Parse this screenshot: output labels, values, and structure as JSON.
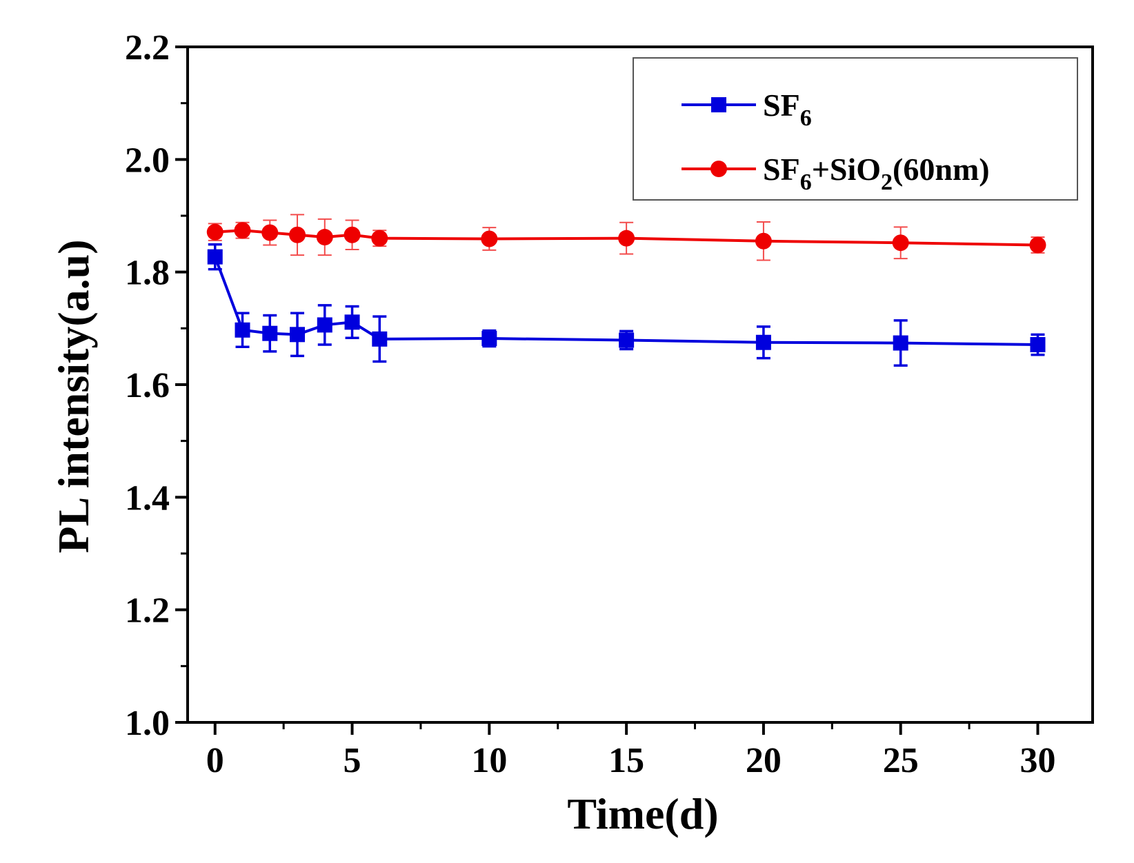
{
  "chart_data": {
    "type": "line",
    "title": "",
    "xlabel": "Time(d)",
    "ylabel": "PL intensity(a.u)",
    "xlim": [
      -1,
      32
    ],
    "ylim": [
      1.0,
      2.2
    ],
    "xticks": [
      0,
      5,
      10,
      15,
      20,
      25,
      30
    ],
    "xtick_labels": [
      "0",
      "5",
      "10",
      "15",
      "20",
      "25",
      "30"
    ],
    "xminor": [
      2.5,
      7.5,
      12.5,
      17.5,
      22.5,
      27.5
    ],
    "yticks": [
      1.0,
      1.2,
      1.4,
      1.6,
      1.8,
      2.0,
      2.2
    ],
    "ytick_labels": [
      "1.0",
      "1.2",
      "1.4",
      "1.6",
      "1.8",
      "2.0",
      "2.2"
    ],
    "yminor": [
      1.1,
      1.3,
      1.5,
      1.7,
      1.9,
      2.1
    ],
    "grid": false,
    "legend_position": "top-right",
    "series": [
      {
        "name": "SF6",
        "legend_main": "SF",
        "legend_sub": "6",
        "legend_tail": "",
        "color": "#0000dd",
        "marker": "square",
        "x": [
          0,
          1,
          2,
          3,
          4,
          5,
          6,
          10,
          15,
          20,
          25,
          30
        ],
        "y": [
          1.827,
          1.697,
          1.691,
          1.689,
          1.706,
          1.711,
          1.681,
          1.682,
          1.679,
          1.675,
          1.674,
          1.671
        ],
        "err": [
          0.022,
          0.03,
          0.032,
          0.038,
          0.035,
          0.028,
          0.04,
          0.014,
          0.016,
          0.028,
          0.04,
          0.018
        ]
      },
      {
        "name": "SF6+SiO2(60nm)",
        "legend_main": "SF",
        "legend_sub": "6",
        "legend_tail": "+SiO",
        "legend_sub2": "2",
        "legend_end": "(60nm)",
        "color": "#ee0000",
        "marker": "circle",
        "x": [
          0,
          1,
          2,
          3,
          4,
          5,
          6,
          10,
          15,
          20,
          25,
          30
        ],
        "y": [
          1.871,
          1.874,
          1.87,
          1.866,
          1.862,
          1.866,
          1.86,
          1.859,
          1.86,
          1.855,
          1.852,
          1.848
        ],
        "err": [
          0.015,
          0.014,
          0.022,
          0.036,
          0.032,
          0.026,
          0.014,
          0.02,
          0.028,
          0.034,
          0.028,
          0.014
        ]
      }
    ]
  }
}
